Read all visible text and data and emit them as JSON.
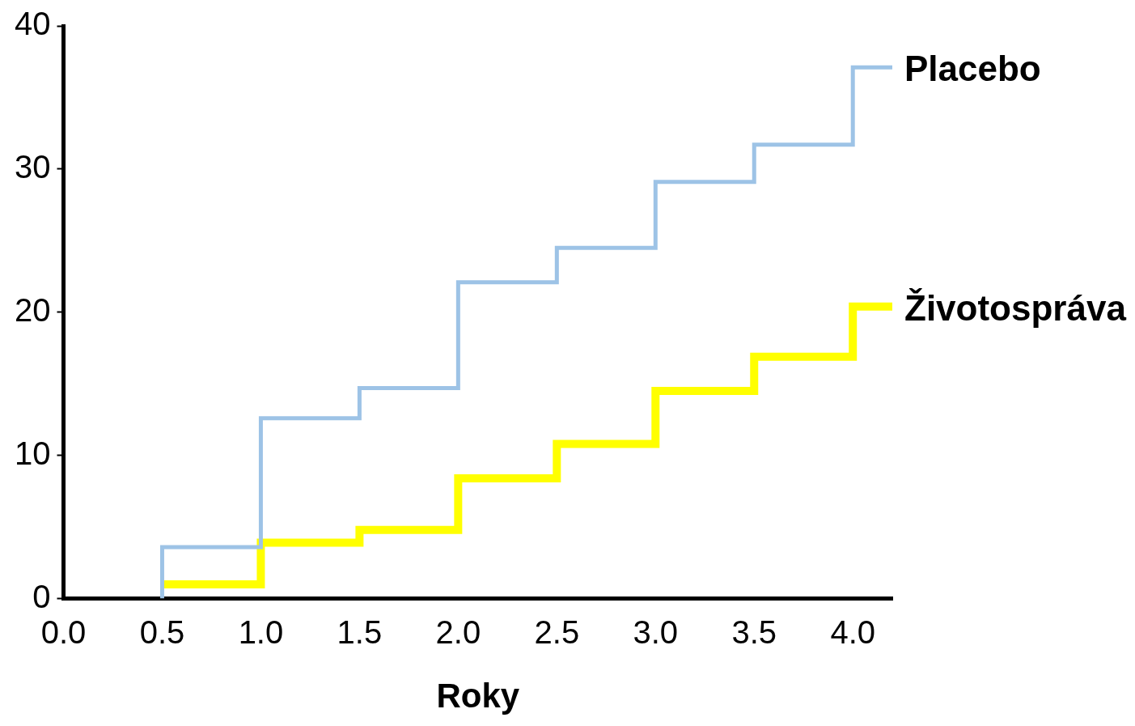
{
  "chart_data": {
    "type": "step",
    "xlabel": "Roky",
    "xlim": [
      0,
      4.2
    ],
    "xticks": [
      {
        "value": 0,
        "label": "0.0"
      },
      0.5,
      {
        "value": 1,
        "label": "1.0"
      },
      1.5,
      {
        "value": 2,
        "label": "2.0"
      },
      2.5,
      {
        "value": 3,
        "label": "3.0"
      },
      3.5,
      {
        "value": 4,
        "label": "4.0"
      }
    ],
    "ylim": [
      0,
      40
    ],
    "yticks": [
      0,
      10,
      20,
      30,
      40
    ],
    "grid": false,
    "legend": false,
    "marker": "none",
    "line_style": "solid",
    "series": [
      {
        "name": "Placebo",
        "color": "#9dc3e6",
        "x": [
          0.5,
          0.5,
          1,
          1.5,
          2,
          2.5,
          3,
          3.5,
          4,
          4.2
        ],
        "values": [
          0,
          3.6,
          12.6,
          14.7,
          22.1,
          24.5,
          29.1,
          31.7,
          37.1,
          37.1
        ]
      },
      {
        "name": "Životospráva",
        "color": "#ffff00",
        "x": [
          0.5,
          1,
          1.5,
          2,
          2.5,
          3,
          3.5,
          4,
          4.2
        ],
        "values": [
          1.0,
          3.9,
          4.8,
          8.4,
          10.8,
          14.5,
          16.9,
          20.4,
          20.4
        ]
      }
    ]
  }
}
